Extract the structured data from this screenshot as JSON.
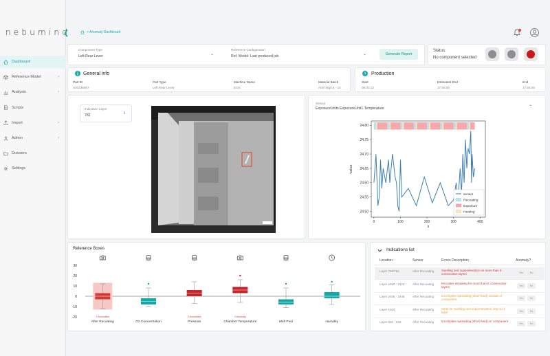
{
  "app": {
    "logo": "nebumind"
  },
  "sidebar": {
    "items": [
      {
        "label": "Dashboard",
        "icon": "home-icon",
        "active": true,
        "chevron": false
      },
      {
        "label": "Reference Model",
        "icon": "cube-icon",
        "active": false,
        "chevron": true
      },
      {
        "label": "Analysis",
        "icon": "chart-icon",
        "active": false,
        "chevron": true
      },
      {
        "label": "Scripts",
        "icon": "document-icon",
        "active": false,
        "chevron": false
      },
      {
        "label": "Import",
        "icon": "upload-icon",
        "active": false,
        "chevron": true
      },
      {
        "label": "Admin",
        "icon": "person-icon",
        "active": false,
        "chevron": true
      },
      {
        "label": "Dossiers",
        "icon": "folder-icon",
        "active": false,
        "chevron": false
      },
      {
        "label": "Settings",
        "icon": "gear-icon",
        "active": false,
        "chevron": false
      }
    ]
  },
  "header": {
    "breadcrumb": "> Anomaly Dashboard"
  },
  "selectors": {
    "component_type": {
      "label": "Component Type",
      "value": "Left Rear Lever"
    },
    "reference_config": {
      "label": "Reference Configuration",
      "value": "Ref. Model: Last produced job"
    },
    "generate_label": "Generate Report"
  },
  "status": {
    "label": "Status:",
    "value": "No component selected"
  },
  "general_info": {
    "title": "General info",
    "fields": [
      {
        "label": "Part ID",
        "value": "S00236987"
      },
      {
        "label": "Part Type",
        "value": "Left Rear Lever"
      },
      {
        "label": "Machine Name",
        "value": "EOS"
      },
      {
        "label": "Material Batch",
        "value": "AlSi7Mg0.6 - 14"
      }
    ]
  },
  "production": {
    "title": "Production",
    "fields": [
      {
        "label": "Start",
        "value": "08:02:12"
      },
      {
        "label": "Estimated End",
        "value": "17:55:06"
      },
      {
        "label": "End",
        "value": "17:55:45"
      }
    ]
  },
  "indication": {
    "label": "Indication Layer",
    "value": "782"
  },
  "sensor": {
    "label": "Sensor",
    "value": "ExposureUnits.ExposureUnit1.Temperature"
  },
  "chart_data": [
    {
      "type": "line",
      "xlabel": "s",
      "ylabel": "value",
      "xlim": [
        -10,
        420
      ],
      "ylim": [
        24.48,
        24.815
      ],
      "xticks": [
        0,
        100,
        200,
        300,
        400
      ],
      "yticks": [
        24.5,
        24.55,
        24.6,
        24.65,
        24.7,
        24.75,
        24.8
      ],
      "legend": [
        "sensor",
        "Recoating",
        "Exposure",
        "Heating"
      ],
      "legend_position": "bottom-right",
      "colors": {
        "sensor": "#3f7fb0",
        "recoating": "#bde1ea",
        "exposure": "#f5a8ac",
        "heating": "#fde1b8"
      },
      "series": [
        {
          "name": "sensor",
          "x": [
            0,
            8,
            15,
            20,
            25,
            30,
            35,
            45,
            55,
            60,
            70,
            80,
            85,
            90,
            95,
            100,
            105,
            130,
            160,
            190,
            220,
            250,
            280,
            300,
            310,
            315,
            320,
            325,
            330,
            335,
            340,
            345,
            350,
            355,
            360,
            365,
            368,
            370,
            375,
            380
          ],
          "y": [
            24.6,
            24.7,
            24.52,
            24.55,
            24.68,
            24.58,
            24.65,
            24.6,
            24.68,
            24.6,
            24.7,
            24.62,
            24.6,
            24.52,
            24.5,
            24.68,
            24.55,
            24.58,
            24.52,
            24.62,
            24.53,
            24.6,
            24.52,
            24.54,
            24.6,
            24.55,
            24.58,
            24.65,
            24.56,
            24.7,
            24.6,
            24.75,
            24.65,
            24.72,
            24.7,
            24.78,
            24.6,
            24.7,
            24.62,
            24.65
          ]
        }
      ]
    },
    {
      "type": "box",
      "title": "Reference Boxes",
      "ylim": [
        -20,
        30
      ],
      "yticks": [
        -20,
        -10,
        0,
        10,
        20,
        30
      ],
      "categories": [
        "After Recoating",
        "O2 Concentration",
        "Pressure",
        "Chamber Temperature",
        "Melt Pool",
        "Humidity"
      ],
      "category_icons": [
        "camera-icon",
        "db-icon",
        "db-icon",
        "camera-icon",
        "db-icon",
        "clock-icon"
      ],
      "series": [
        {
          "name": "After Recoating",
          "low": -12,
          "q1": -3,
          "median": 0,
          "q3": 3,
          "high": 12,
          "color": "#d23a35",
          "highlight": true,
          "tag": "2 Anomalies"
        },
        {
          "name": "O2 Concentration",
          "low": -10,
          "q1": -8,
          "median": -5,
          "q3": -2,
          "high": 8,
          "color": "#16a8a8",
          "outlier": 12
        },
        {
          "name": "Pressure",
          "low": -7,
          "q1": 0,
          "median": 3,
          "q3": 6,
          "high": 14,
          "color": "#c9242a",
          "tag": "2 Anomalies"
        },
        {
          "name": "Chamber Temperature",
          "low": -6,
          "q1": 3,
          "median": 6,
          "q3": 9,
          "high": 16,
          "color": "#c9242a",
          "outlier": 20,
          "tag": "1 Anomaly"
        },
        {
          "name": "Melt Pool",
          "low": -11,
          "q1": -8,
          "median": -6,
          "q3": -3,
          "high": 8,
          "color": "#16a8a8",
          "outlier": 12
        },
        {
          "name": "Humidity",
          "low": -8,
          "q1": -2,
          "median": 0,
          "q3": 4,
          "high": 11,
          "color": "#16a8a8",
          "outlier": 14
        }
      ]
    }
  ],
  "indications": {
    "title": "Indications list",
    "columns": [
      "Location",
      "Sensor",
      "Errors Description",
      "Anomaly?"
    ],
    "rows": [
      {
        "location": "Layer 758/762",
        "sensor": "After Recoating",
        "desc": "Swelling and superelevation on more than 5 consecutive layers",
        "color": "#d23a35"
      },
      {
        "location": "Layer 2460 - 2424",
        "sensor": "After Recoating",
        "desc": "Recoater streaking for more than 5 consecutive layers",
        "color": "#d23a35"
      },
      {
        "location": "Layer 2445 - 2446",
        "sensor": "After Recoating",
        "desc": "Incomplete spreading (short feed) outside of component",
        "color": "#e8a030"
      },
      {
        "location": "Layer 1634",
        "sensor": "After Recoating",
        "desc": "Hints for swelling and superelevation only on 1 layer",
        "color": "#e8a030"
      },
      {
        "location": "Layer 632 - 634",
        "sensor": "After Recoating",
        "desc": "Incomplete spreading (short feed) on component",
        "color": "#d23a35"
      }
    ],
    "yes_label": "Yes",
    "no_label": "No"
  }
}
